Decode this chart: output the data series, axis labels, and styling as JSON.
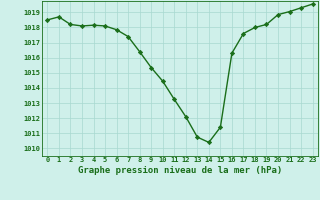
{
  "x": [
    0,
    1,
    2,
    3,
    4,
    5,
    6,
    7,
    8,
    9,
    10,
    11,
    12,
    13,
    14,
    15,
    16,
    17,
    18,
    19,
    20,
    21,
    22,
    23
  ],
  "y": [
    1018.5,
    1018.7,
    1018.2,
    1018.1,
    1018.15,
    1018.1,
    1017.85,
    1017.4,
    1016.4,
    1015.35,
    1014.45,
    1013.25,
    1012.1,
    1010.75,
    1010.4,
    1011.4,
    1016.3,
    1017.6,
    1018.0,
    1018.2,
    1018.85,
    1019.05,
    1019.3,
    1019.55
  ],
  "line_color": "#1a6e1a",
  "marker": "D",
  "marker_size": 2.2,
  "bg_color": "#cff0ea",
  "grid_color": "#a8d8d0",
  "xlabel": "Graphe pression niveau de la mer (hPa)",
  "ylim": [
    1009.5,
    1019.75
  ],
  "xlim": [
    -0.5,
    23.5
  ],
  "yticks": [
    1010,
    1011,
    1012,
    1013,
    1014,
    1015,
    1016,
    1017,
    1018,
    1019
  ],
  "xticks": [
    0,
    1,
    2,
    3,
    4,
    5,
    6,
    7,
    8,
    9,
    10,
    11,
    12,
    13,
    14,
    15,
    16,
    17,
    18,
    19,
    20,
    21,
    22,
    23
  ],
  "tick_fontsize": 5.0,
  "xlabel_fontsize": 6.5,
  "line_width": 1.0
}
